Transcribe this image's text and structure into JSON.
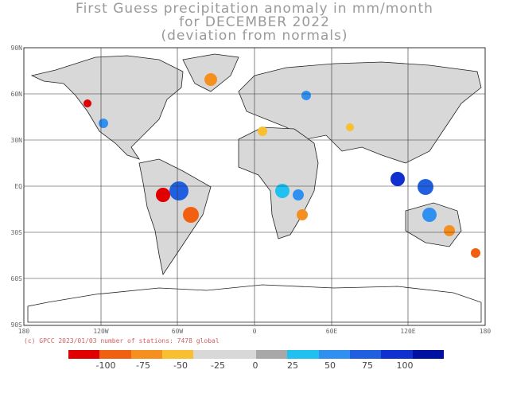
{
  "title": {
    "line1": "First Guess precipitation anomaly in mm/month",
    "line2": "for DECEMBER 2022",
    "line3": "(deviation from normals)"
  },
  "axes": {
    "lat_labels": [
      "90N",
      "60N",
      "30N",
      "EQ",
      "30S",
      "60S",
      "90S"
    ],
    "lon_labels": [
      "180",
      "120W",
      "60W",
      "0",
      "60E",
      "120E",
      "180"
    ]
  },
  "credit": "(c) GPCC 2023/01/03 number of stations: 7478 global",
  "colorbar": {
    "colors": [
      "#e00000",
      "#f06010",
      "#f59020",
      "#f8c030",
      "#d8d8d8",
      "#d8d8d8",
      "#a8a8a8",
      "#20c0f0",
      "#3090f0",
      "#2060e0",
      "#1030d0",
      "#0010a0"
    ],
    "labels": [
      "-100",
      "-75",
      "-50",
      "-25",
      "0",
      "25",
      "50",
      "75",
      "100"
    ]
  },
  "legend_colors": {
    "ocean": "#ffffff",
    "land_neutral": "#d8d8d8",
    "land_light_wet": "#a8a8a8",
    "coast": "#222222",
    "grid": "#333333"
  }
}
